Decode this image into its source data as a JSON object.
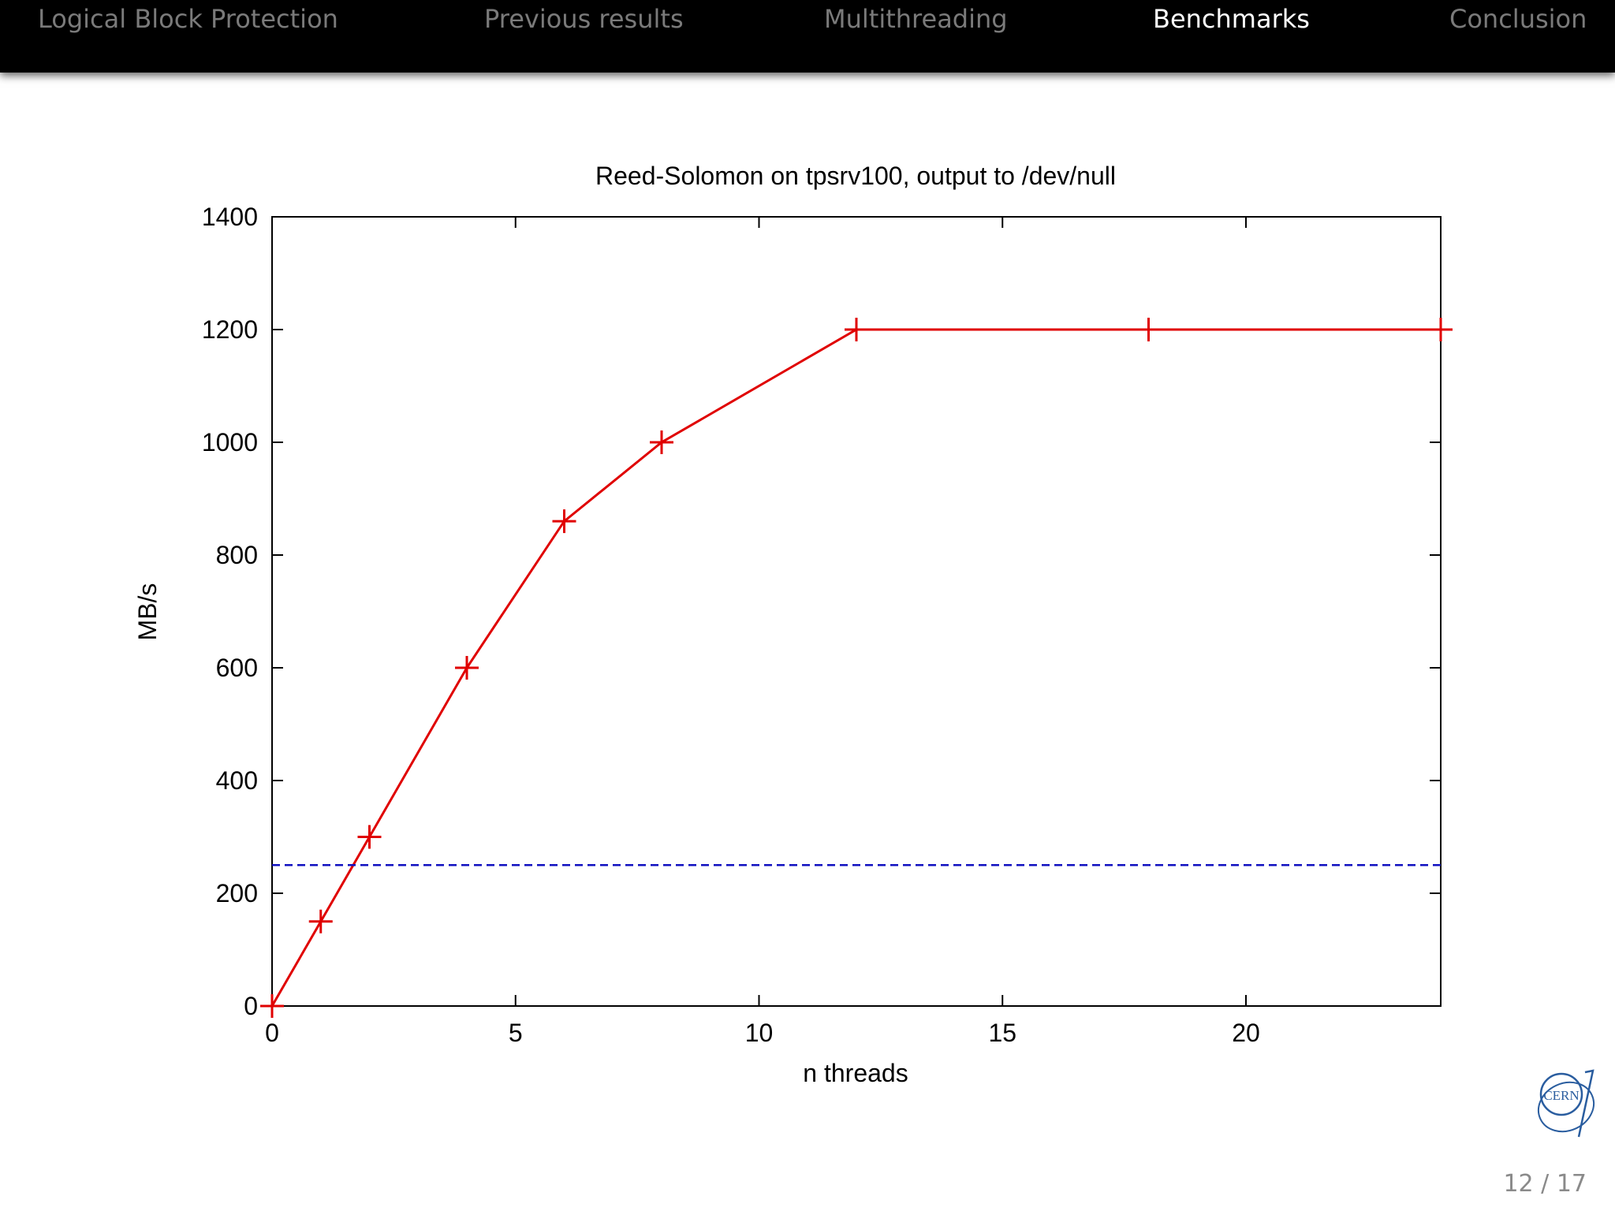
{
  "nav": {
    "items": [
      {
        "label": "Logical Block Protection",
        "active": false
      },
      {
        "label": "Previous results",
        "active": false
      },
      {
        "label": "Multithreading",
        "active": false
      },
      {
        "label": "Benchmarks",
        "active": true
      },
      {
        "label": "Conclusion",
        "active": false
      }
    ]
  },
  "chart_data": {
    "type": "line",
    "title": "Reed-Solomon on tpsrv100, output to /dev/null",
    "xlabel": "n threads",
    "ylabel": "MB/s",
    "xlim": [
      0,
      24
    ],
    "ylim": [
      0,
      1400
    ],
    "xticks": [
      0,
      5,
      10,
      15,
      20
    ],
    "yticks": [
      0,
      200,
      400,
      600,
      800,
      1000,
      1200,
      1400
    ],
    "grid": false,
    "series": [
      {
        "color": "#e00000",
        "style": "solid",
        "marker": "plus",
        "points": [
          [
            0,
            0
          ],
          [
            1,
            150
          ],
          [
            2,
            300
          ],
          [
            4,
            600
          ],
          [
            6,
            860
          ],
          [
            8,
            1000
          ],
          [
            12,
            1200
          ],
          [
            18,
            1200
          ],
          [
            24,
            1200
          ]
        ]
      },
      {
        "color": "#1010c0",
        "style": "dashed",
        "marker": "none",
        "points": [
          [
            0,
            250
          ],
          [
            24,
            250
          ]
        ]
      }
    ]
  },
  "footer": {
    "page": "12 / 17",
    "logo_text": "CERN"
  }
}
